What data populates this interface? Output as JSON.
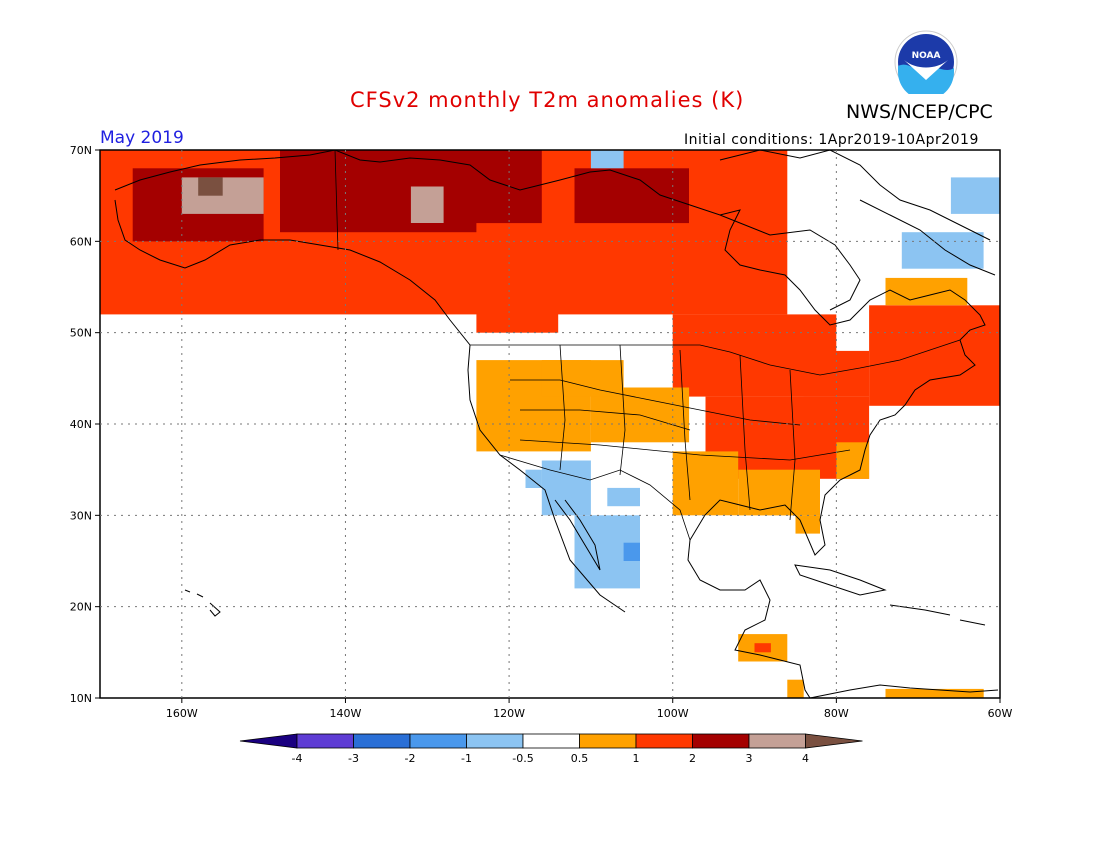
{
  "header": {
    "title": "CFSv2 monthly T2m anomalies (K)",
    "agency": "NWS/NCEP/CPC",
    "logo_text": "NOAA",
    "month": "May 2019",
    "initial_conditions": "Initial conditions: 1Apr2019-10Apr2019"
  },
  "map": {
    "lon_range": [
      -170,
      -60
    ],
    "lat_range": [
      10,
      70
    ],
    "lat_ticks": [
      "70N",
      "60N",
      "50N",
      "40N",
      "30N",
      "20N",
      "10N"
    ],
    "lon_ticks": [
      "160W",
      "140W",
      "120W",
      "100W",
      "80W",
      "60W"
    ],
    "colors": {
      "lt_neg4": "#1a0080",
      "neg4_neg3": "#5e3cd4",
      "neg3_neg2": "#2a6fd6",
      "neg2_neg1": "#4a98ec",
      "neg1_neg05": "#8cc4f2",
      "neutral": "#ffffff",
      "p05_1": "#ffa100",
      "p1_2": "#ff3800",
      "p2_3": "#a40000",
      "p3_4": "#c4a096",
      "gt4": "#7a5040"
    }
  },
  "colorbar": {
    "labels": [
      "-4",
      "-3",
      "-2",
      "-1",
      "-0.5",
      "0.5",
      "1",
      "2",
      "3",
      "4"
    ],
    "colors": [
      "#1a0080",
      "#5e3cd4",
      "#2a6fd6",
      "#4a98ec",
      "#8cc4f2",
      "#ffffff",
      "#ffa100",
      "#ff3800",
      "#a40000",
      "#c4a096",
      "#7a5040"
    ]
  }
}
